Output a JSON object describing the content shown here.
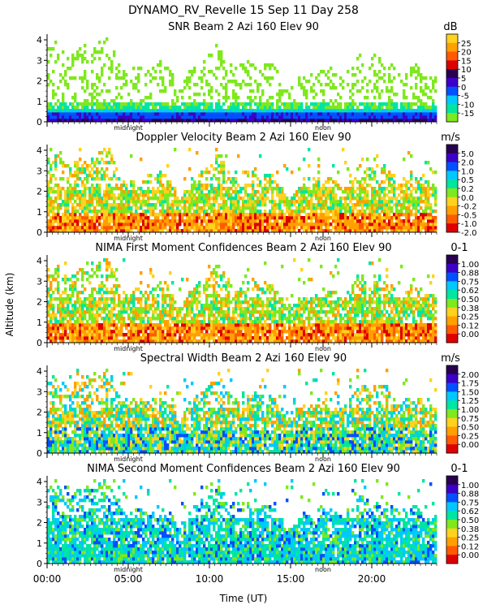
{
  "header": {
    "line1": "DYNAMO_RV_Revelle  15 Sep 11 Day 258"
  },
  "common": {
    "ylabel": "Altitude (km)",
    "xlabel": "Time (UT)",
    "x_ticks": [
      "00:00",
      "05:00",
      "10:00",
      "15:00",
      "20:00"
    ],
    "x_range_hours": [
      0,
      24
    ],
    "y_ticks": [
      "0",
      "1",
      "2",
      "3",
      "4"
    ],
    "y_range_km": [
      0,
      4.2
    ],
    "midnight_label": "midnight",
    "noon_label": "noon",
    "midnight_hour": 5.0,
    "noon_hour": 17.0
  },
  "chart_data": [
    {
      "type": "heatmap",
      "title": "SNR Beam 2 Azi 160 Elev 90",
      "unit": "dB",
      "colorbar_labels": [
        "25",
        "20",
        "15",
        "10",
        "5",
        "0",
        "-5",
        "-10",
        "-15"
      ],
      "colors": [
        "#ffd21e",
        "#ffa000",
        "#ff5a00",
        "#dc0000",
        "#280050",
        "#3c00c8",
        "#0050ff",
        "#00c8ff",
        "#00e6a0",
        "#7fe81e"
      ],
      "data_top_km": 4.0,
      "bands": [
        {
          "range_km": [
            0.0,
            0.3
          ],
          "value": "5 to 10"
        },
        {
          "range_km": [
            0.3,
            0.6
          ],
          "value": "-5 to 0"
        },
        {
          "range_km": [
            0.6,
            1.0
          ],
          "value": "-10 to -15"
        },
        {
          "range_km": [
            1.0,
            4.0
          ],
          "value": "-15 sparse"
        }
      ]
    },
    {
      "type": "heatmap",
      "title": "Doppler Velocity Beam 2 Azi 160 Elev 90",
      "unit": "m/s",
      "colorbar_labels": [
        "5.0",
        "2.0",
        "1.0",
        "0.5",
        "0.2",
        "0.0",
        "-0.2",
        "-0.5",
        "-1.0",
        "-2.0"
      ],
      "colors": [
        "#280050",
        "#3c00c8",
        "#0050ff",
        "#00c8ff",
        "#00e6a0",
        "#7fe81e",
        "#ffd21e",
        "#ffa000",
        "#ff5a00",
        "#dc0000"
      ],
      "data_top_km": 4.0
    },
    {
      "type": "heatmap",
      "title": "NIMA First Moment Confidences Beam 2 Azi 160 Elev 90",
      "unit": "0-1",
      "colorbar_labels": [
        "1.00",
        "0.88",
        "0.75",
        "0.62",
        "0.50",
        "0.38",
        "0.25",
        "0.12",
        "0.00"
      ],
      "colors": [
        "#280050",
        "#3c00c8",
        "#0050ff",
        "#00c8ff",
        "#00e6a0",
        "#7fe81e",
        "#ffd21e",
        "#ffa000",
        "#ff5a00",
        "#dc0000"
      ],
      "data_top_km": 4.0
    },
    {
      "type": "heatmap",
      "title": "Spectral Width Beam 2 Azi 160 Elev 90",
      "unit": "m/s",
      "colorbar_labels": [
        "2.00",
        "1.75",
        "1.50",
        "1.25",
        "1.00",
        "0.75",
        "0.50",
        "0.25",
        "0.00"
      ],
      "colors": [
        "#280050",
        "#3c00c8",
        "#0050ff",
        "#00c8ff",
        "#00e6a0",
        "#7fe81e",
        "#ffd21e",
        "#ffa000",
        "#ff5a00",
        "#dc0000"
      ],
      "data_top_km": 4.0
    },
    {
      "type": "heatmap",
      "title": "NIMA Second Moment Confidences Beam 2 Azi 160 Elev 90",
      "unit": "0-1",
      "colorbar_labels": [
        "1.00",
        "0.88",
        "0.75",
        "0.62",
        "0.50",
        "0.38",
        "0.25",
        "0.12",
        "0.00"
      ],
      "colors": [
        "#280050",
        "#3c00c8",
        "#0050ff",
        "#00c8ff",
        "#00e6a0",
        "#7fe81e",
        "#ffd21e",
        "#ffa000",
        "#ff5a00",
        "#dc0000"
      ],
      "data_top_km": 4.0
    }
  ]
}
